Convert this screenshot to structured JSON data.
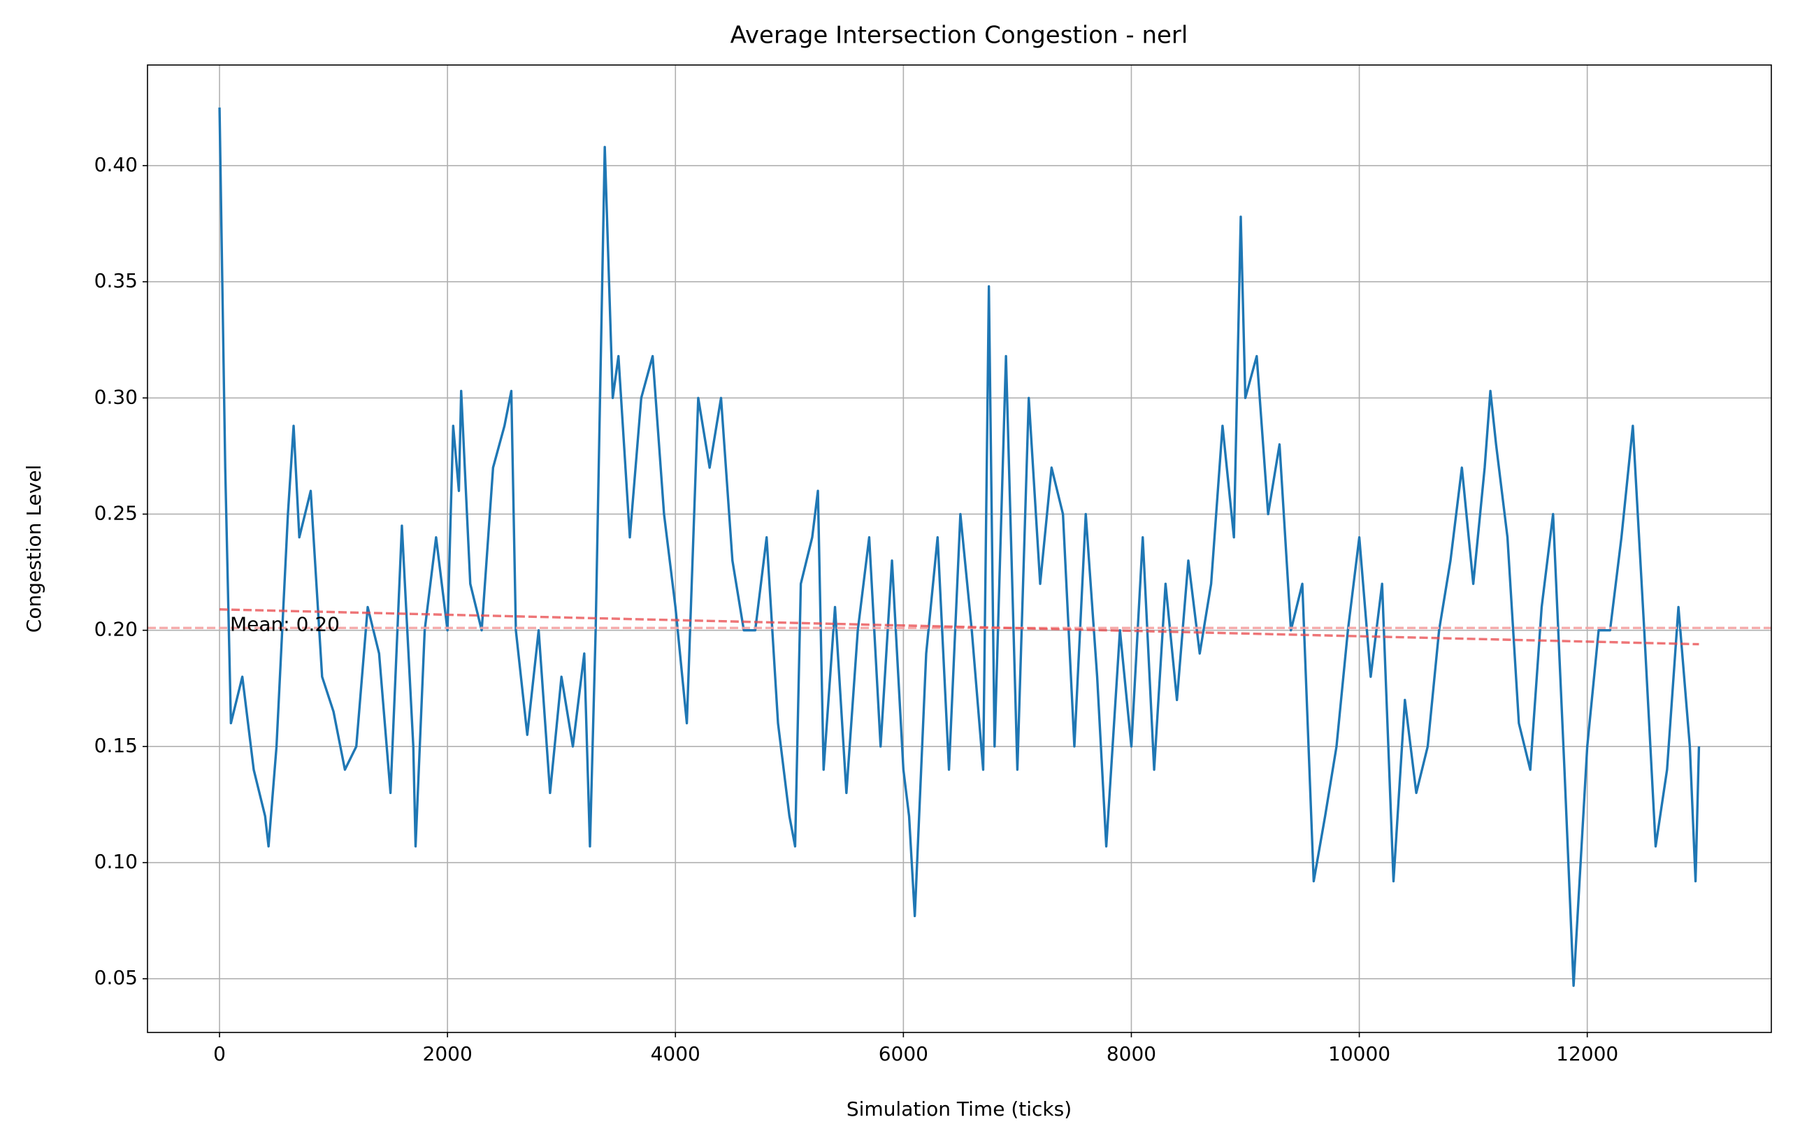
{
  "chart_data": {
    "type": "line",
    "title": "Average Intersection Congestion - nerl",
    "xlabel": "Simulation Time (ticks)",
    "ylabel": "Congestion Level",
    "color": "#1f77b4",
    "x": [
      0,
      50,
      100,
      200,
      300,
      400,
      430,
      500,
      600,
      650,
      700,
      800,
      900,
      1000,
      1100,
      1200,
      1300,
      1400,
      1500,
      1600,
      1700,
      1720,
      1800,
      1900,
      2000,
      2050,
      2100,
      2120,
      2200,
      2300,
      2400,
      2500,
      2560,
      2600,
      2700,
      2800,
      2900,
      3000,
      3100,
      3200,
      3250,
      3300,
      3380,
      3450,
      3500,
      3600,
      3700,
      3800,
      3900,
      4000,
      4100,
      4200,
      4300,
      4400,
      4500,
      4600,
      4700,
      4800,
      4900,
      5000,
      5050,
      5100,
      5200,
      5250,
      5300,
      5400,
      5500,
      5600,
      5700,
      5800,
      5900,
      6000,
      6050,
      6100,
      6200,
      6300,
      6400,
      6500,
      6600,
      6700,
      6750,
      6800,
      6900,
      7000,
      7100,
      7200,
      7300,
      7400,
      7500,
      7600,
      7700,
      7780,
      7900,
      8000,
      8100,
      8200,
      8300,
      8400,
      8500,
      8600,
      8700,
      8800,
      8900,
      8960,
      9000,
      9100,
      9200,
      9300,
      9400,
      9500,
      9600,
      9700,
      9800,
      9900,
      10000,
      10100,
      10200,
      10300,
      10400,
      10500,
      10600,
      10700,
      10800,
      10900,
      11000,
      11100,
      11150,
      11200,
      11300,
      11400,
      11500,
      11600,
      11700,
      11800,
      11880,
      12000,
      12100,
      12200,
      12300,
      12400,
      12500,
      12600,
      12700,
      12800,
      12900,
      12950,
      12980
    ],
    "values": [
      0.425,
      0.27,
      0.16,
      0.18,
      0.14,
      0.12,
      0.107,
      0.15,
      0.25,
      0.288,
      0.24,
      0.26,
      0.18,
      0.165,
      0.14,
      0.15,
      0.21,
      0.19,
      0.13,
      0.245,
      0.15,
      0.107,
      0.2,
      0.24,
      0.2,
      0.288,
      0.26,
      0.303,
      0.22,
      0.2,
      0.27,
      0.288,
      0.303,
      0.2,
      0.155,
      0.2,
      0.13,
      0.18,
      0.15,
      0.19,
      0.107,
      0.2,
      0.408,
      0.3,
      0.318,
      0.24,
      0.3,
      0.318,
      0.25,
      0.21,
      0.16,
      0.3,
      0.27,
      0.3,
      0.23,
      0.2,
      0.2,
      0.24,
      0.16,
      0.12,
      0.107,
      0.22,
      0.24,
      0.26,
      0.14,
      0.21,
      0.13,
      0.2,
      0.24,
      0.15,
      0.23,
      0.14,
      0.12,
      0.077,
      0.19,
      0.24,
      0.14,
      0.25,
      0.2,
      0.14,
      0.348,
      0.15,
      0.318,
      0.14,
      0.3,
      0.22,
      0.27,
      0.25,
      0.15,
      0.25,
      0.18,
      0.107,
      0.2,
      0.15,
      0.24,
      0.14,
      0.22,
      0.17,
      0.23,
      0.19,
      0.22,
      0.288,
      0.24,
      0.378,
      0.3,
      0.318,
      0.25,
      0.28,
      0.2,
      0.22,
      0.092,
      0.12,
      0.15,
      0.2,
      0.24,
      0.18,
      0.22,
      0.092,
      0.17,
      0.13,
      0.15,
      0.2,
      0.23,
      0.27,
      0.22,
      0.27,
      0.303,
      0.28,
      0.24,
      0.16,
      0.14,
      0.21,
      0.25,
      0.14,
      0.047,
      0.15,
      0.2,
      0.2,
      0.24,
      0.288,
      0.2,
      0.107,
      0.14,
      0.21,
      0.15,
      0.092,
      0.15
    ],
    "mean_line": {
      "value": 0.201,
      "color": "#f4a3a3"
    },
    "trend": {
      "x": [
        0,
        12980
      ],
      "values": [
        0.209,
        0.194
      ],
      "color": "#e8474a"
    },
    "annotation": "Mean: 0.20",
    "xlim": [
      -632,
      13615
    ],
    "ylim": [
      0.0269,
      0.4433
    ],
    "xticks": [
      0,
      2000,
      4000,
      6000,
      8000,
      10000,
      12000
    ],
    "yticks": [
      0.05,
      {
        "value": 0.1,
        "label": "0.10"
      },
      0.15,
      {
        "value": 0.2,
        "label": "0.20"
      },
      0.25,
      {
        "value": 0.3,
        "label": "0.30"
      },
      0.35,
      {
        "value": 0.4,
        "label": "0.40"
      }
    ],
    "grid": true
  }
}
